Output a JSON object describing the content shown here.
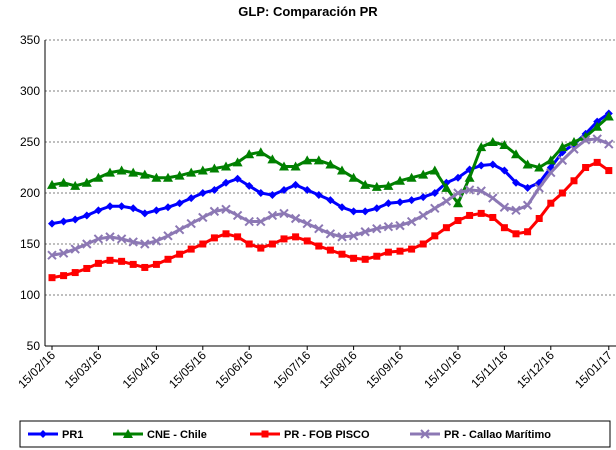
{
  "chart_data": {
    "type": "line",
    "title": "GLP: Comparación PR",
    "categories": [
      "15/02/16",
      null,
      null,
      null,
      "15/03/16",
      null,
      null,
      null,
      null,
      "15/04/16",
      null,
      null,
      null,
      "15/05/16",
      null,
      null,
      null,
      "15/06/16",
      null,
      null,
      null,
      null,
      "15/07/16",
      null,
      null,
      null,
      "15/08/16",
      null,
      null,
      null,
      "15/09/16",
      null,
      null,
      null,
      null,
      "15/10/16",
      null,
      null,
      null,
      "15/11/16",
      null,
      null,
      null,
      "15/12/16",
      null,
      null,
      null,
      null,
      "15/01/17"
    ],
    "ylim": [
      50,
      350
    ],
    "yticks": [
      50,
      100,
      150,
      200,
      250,
      300,
      350
    ],
    "grid": true,
    "series": [
      {
        "name": "PR1",
        "color": "#0000ff",
        "marker": "diamond",
        "values": [
          170,
          172,
          174,
          178,
          183,
          187,
          187,
          185,
          180,
          183,
          186,
          190,
          195,
          200,
          203,
          210,
          214,
          207,
          200,
          198,
          203,
          208,
          203,
          198,
          193,
          186,
          182,
          182,
          185,
          190,
          191,
          193,
          196,
          200,
          210,
          215,
          223,
          227,
          228,
          222,
          210,
          205,
          210,
          225,
          240,
          248,
          258,
          270,
          278
        ]
      },
      {
        "name": "CNE - Chile",
        "color": "#008000",
        "marker": "triangle",
        "values": [
          208,
          210,
          207,
          210,
          215,
          220,
          222,
          220,
          218,
          215,
          215,
          217,
          220,
          222,
          224,
          226,
          230,
          238,
          240,
          233,
          226,
          226,
          232,
          232,
          228,
          222,
          215,
          208,
          206,
          207,
          212,
          215,
          218,
          222,
          205,
          190,
          215,
          245,
          250,
          247,
          238,
          228,
          225,
          232,
          245,
          250,
          255,
          265,
          275
        ]
      },
      {
        "name": "PR - FOB PISCO",
        "color": "#ff0000",
        "marker": "square",
        "values": [
          117,
          119,
          122,
          126,
          131,
          134,
          133,
          130,
          127,
          130,
          135,
          140,
          145,
          150,
          156,
          160,
          157,
          150,
          146,
          150,
          155,
          157,
          153,
          148,
          144,
          140,
          136,
          135,
          138,
          142,
          143,
          145,
          150,
          158,
          166,
          173,
          178,
          180,
          176,
          166,
          160,
          162,
          175,
          190,
          200,
          212,
          225,
          230,
          222
        ]
      },
      {
        "name": "PR - Callao Marítimo",
        "color": "#8c78b4",
        "marker": "x",
        "values": [
          139,
          141,
          145,
          150,
          155,
          157,
          155,
          152,
          150,
          153,
          158,
          164,
          170,
          176,
          182,
          184,
          178,
          172,
          172,
          178,
          180,
          175,
          170,
          165,
          160,
          157,
          158,
          162,
          165,
          167,
          168,
          172,
          178,
          185,
          192,
          200,
          203,
          202,
          195,
          186,
          183,
          188,
          205,
          220,
          232,
          243,
          252,
          253,
          248
        ]
      }
    ]
  }
}
